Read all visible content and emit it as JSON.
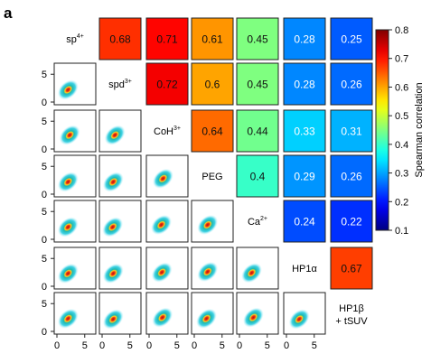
{
  "panel_label": "a",
  "chart_data": {
    "type": "heatmap",
    "variables": [
      "sp4+",
      "spd3+",
      "CoH3+",
      "PEG",
      "Ca2+",
      "HP1α",
      "HP1β + tSUV"
    ],
    "variable_labels": [
      {
        "base": "sp",
        "sup": "4+"
      },
      {
        "base": "spd",
        "sup": "3+"
      },
      {
        "base": "CoH",
        "sup": "3+"
      },
      {
        "base": "PEG",
        "sup": ""
      },
      {
        "base": "Ca",
        "sup": "2+"
      },
      {
        "base": "HP1α",
        "sup": ""
      },
      {
        "base": "HP1β",
        "sup": "",
        "line2": "+ tSUV"
      }
    ],
    "correlations": [
      {
        "row": 0,
        "col": 1,
        "value": 0.68,
        "label": "0.68"
      },
      {
        "row": 0,
        "col": 2,
        "value": 0.71,
        "label": "0.71"
      },
      {
        "row": 0,
        "col": 3,
        "value": 0.61,
        "label": "0.61"
      },
      {
        "row": 0,
        "col": 4,
        "value": 0.45,
        "label": "0.45"
      },
      {
        "row": 0,
        "col": 5,
        "value": 0.28,
        "label": "0.28"
      },
      {
        "row": 0,
        "col": 6,
        "value": 0.25,
        "label": "0.25"
      },
      {
        "row": 1,
        "col": 2,
        "value": 0.72,
        "label": "0.72"
      },
      {
        "row": 1,
        "col": 3,
        "value": 0.6,
        "label": "0.6"
      },
      {
        "row": 1,
        "col": 4,
        "value": 0.45,
        "label": "0.45"
      },
      {
        "row": 1,
        "col": 5,
        "value": 0.28,
        "label": "0.28"
      },
      {
        "row": 1,
        "col": 6,
        "value": 0.26,
        "label": "0.26"
      },
      {
        "row": 2,
        "col": 3,
        "value": 0.64,
        "label": "0.64"
      },
      {
        "row": 2,
        "col": 4,
        "value": 0.44,
        "label": "0.44"
      },
      {
        "row": 2,
        "col": 5,
        "value": 0.33,
        "label": "0.33"
      },
      {
        "row": 2,
        "col": 6,
        "value": 0.31,
        "label": "0.31"
      },
      {
        "row": 3,
        "col": 4,
        "value": 0.4,
        "label": "0.4"
      },
      {
        "row": 3,
        "col": 5,
        "value": 0.29,
        "label": "0.29"
      },
      {
        "row": 3,
        "col": 6,
        "value": 0.26,
        "label": "0.26"
      },
      {
        "row": 4,
        "col": 5,
        "value": 0.24,
        "label": "0.24"
      },
      {
        "row": 4,
        "col": 6,
        "value": 0.22,
        "label": "0.22"
      },
      {
        "row": 5,
        "col": 6,
        "value": 0.67,
        "label": "0.67"
      }
    ],
    "scatter_lower_triangle": {
      "x_ticks": [
        "0",
        "5"
      ],
      "y_ticks": [
        "0",
        "5"
      ],
      "range": [
        0,
        6.5
      ],
      "density_centers": [
        {
          "row": 1,
          "col": 0,
          "cx": 2.0,
          "cy": 2.2
        },
        {
          "row": 2,
          "col": 0,
          "cx": 2.3,
          "cy": 2.5
        },
        {
          "row": 2,
          "col": 1,
          "cx": 2.3,
          "cy": 2.5
        },
        {
          "row": 3,
          "col": 0,
          "cx": 2.0,
          "cy": 2.2
        },
        {
          "row": 3,
          "col": 1,
          "cx": 2.0,
          "cy": 2.2
        },
        {
          "row": 3,
          "col": 2,
          "cx": 2.5,
          "cy": 2.8
        },
        {
          "row": 4,
          "col": 0,
          "cx": 2.0,
          "cy": 2.2
        },
        {
          "row": 4,
          "col": 1,
          "cx": 1.9,
          "cy": 2.2
        },
        {
          "row": 4,
          "col": 2,
          "cx": 2.2,
          "cy": 2.6
        },
        {
          "row": 4,
          "col": 3,
          "cx": 2.4,
          "cy": 2.6
        },
        {
          "row": 5,
          "col": 0,
          "cx": 2.0,
          "cy": 2.3
        },
        {
          "row": 5,
          "col": 1,
          "cx": 2.0,
          "cy": 2.3
        },
        {
          "row": 5,
          "col": 2,
          "cx": 2.3,
          "cy": 2.5
        },
        {
          "row": 5,
          "col": 3,
          "cx": 2.4,
          "cy": 2.6
        },
        {
          "row": 5,
          "col": 4,
          "cx": 2.2,
          "cy": 2.4
        },
        {
          "row": 6,
          "col": 0,
          "cx": 2.0,
          "cy": 2.3
        },
        {
          "row": 6,
          "col": 1,
          "cx": 2.0,
          "cy": 2.2
        },
        {
          "row": 6,
          "col": 2,
          "cx": 2.4,
          "cy": 2.5
        },
        {
          "row": 6,
          "col": 3,
          "cx": 2.2,
          "cy": 2.3
        },
        {
          "row": 6,
          "col": 4,
          "cx": 2.5,
          "cy": 2.5
        },
        {
          "row": 6,
          "col": 5,
          "cx": 2.3,
          "cy": 2.2
        }
      ]
    },
    "colorbar": {
      "label": "Spearman correlation",
      "min": 0.1,
      "max": 0.8,
      "ticks": [
        "0.1",
        "0.2",
        "0.3",
        "0.4",
        "0.5",
        "0.6",
        "0.7",
        "0.8"
      ],
      "colormap": "jet"
    },
    "grid": false
  }
}
